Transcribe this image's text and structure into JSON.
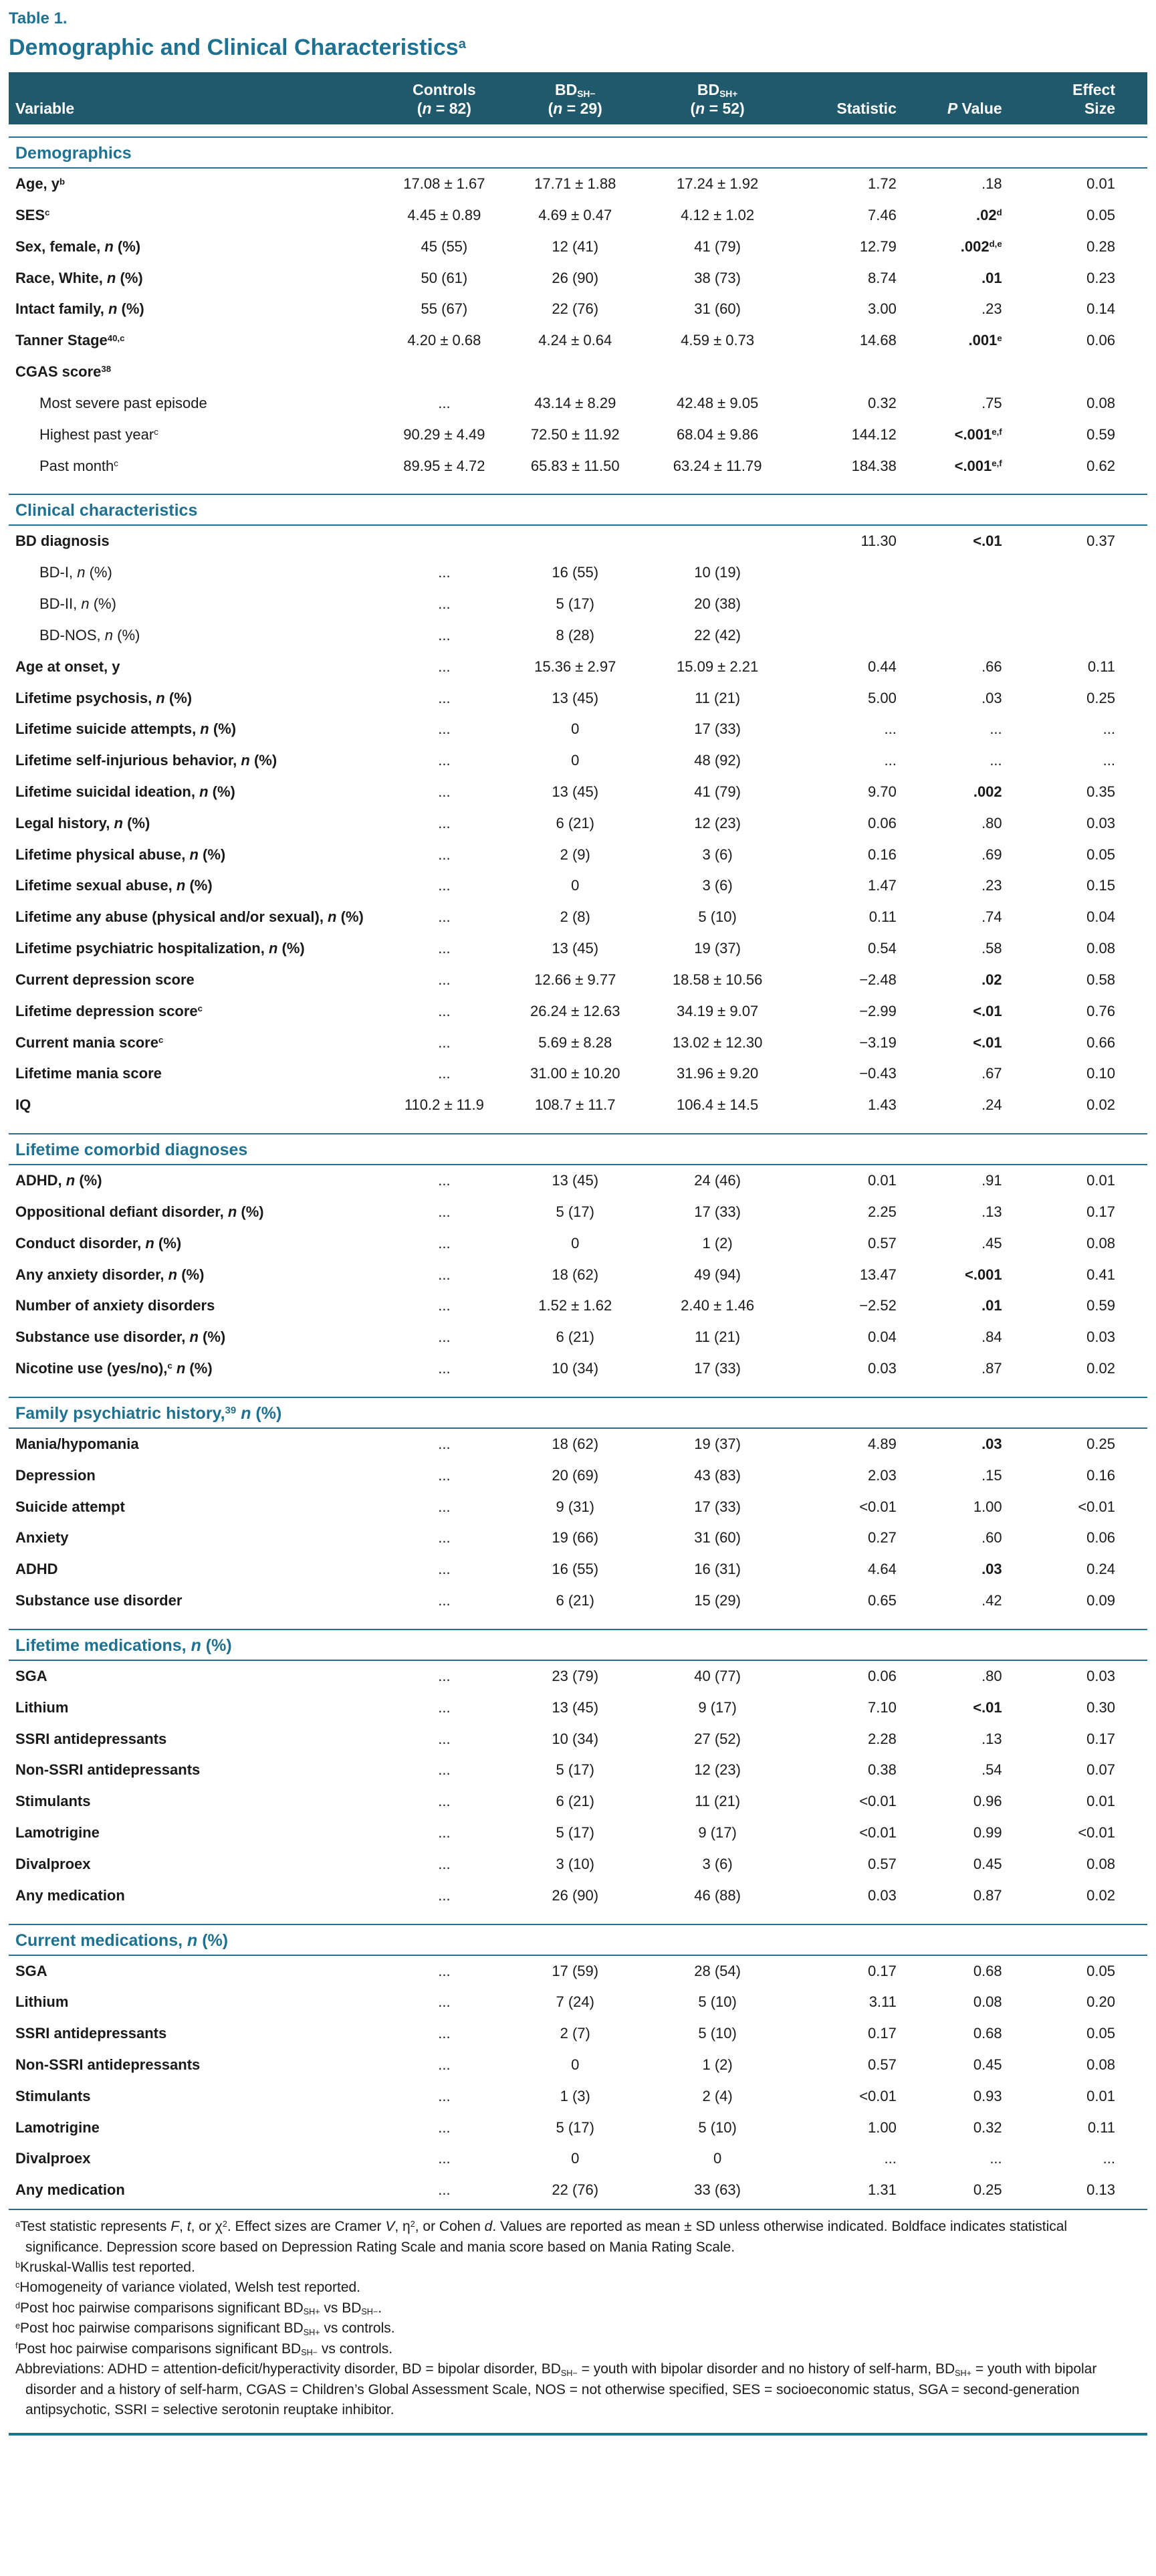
{
  "colors": {
    "accent": "#1f7191",
    "header_bg": "#20586c"
  },
  "caption": {
    "table_label": "Table 1.",
    "title": "Demographic and Clinical Characteristics^{a}"
  },
  "table": {
    "columns": [
      {
        "key": "variable",
        "label": "Variable"
      },
      {
        "key": "controls",
        "label": "Controls\n(*{n} = 82)"
      },
      {
        "key": "bd-sh-minus",
        "label": "BD_{SH−}\n(*{n} = 29)"
      },
      {
        "key": "bd-sh-plus",
        "label": "BD_{SH+}\n(*{n} = 52)"
      },
      {
        "key": "statistic",
        "label": "Statistic"
      },
      {
        "key": "p-value",
        "label": "*{P} Value"
      },
      {
        "key": "effect-size",
        "label": "Effect\nSize"
      }
    ],
    "sections": [
      {
        "key": "demographics",
        "title": "Demographics",
        "rows": [
          {
            "label": "Age, y^{b}",
            "values": [
              "17.08 ± 1.67",
              "17.71 ± 1.88",
              "17.24 ± 1.92",
              "1.72",
              ".18",
              "0.01"
            ]
          },
          {
            "label": "SES^{c}",
            "values": [
              "4.45 ± 0.89",
              "4.69 ± 0.47",
              "4.12 ± 1.02",
              "7.46",
              ".02^{d}",
              "0.05"
            ],
            "p_bold": true
          },
          {
            "label": "Sex, female, *{n} (%)",
            "values": [
              "45 (55)",
              "12 (41)",
              "41 (79)",
              "12.79",
              ".002^{d,e}",
              "0.28"
            ],
            "p_bold": true
          },
          {
            "label": "Race, White, *{n} (%)",
            "values": [
              "50 (61)",
              "26 (90)",
              "38 (73)",
              "8.74",
              ".01",
              "0.23"
            ],
            "p_bold": true
          },
          {
            "label": "Intact family, *{n} (%)",
            "values": [
              "55 (67)",
              "22 (76)",
              "31 (60)",
              "3.00",
              ".23",
              "0.14"
            ]
          },
          {
            "label": "Tanner Stage^{40,c}",
            "values": [
              "4.20 ± 0.68",
              "4.24 ± 0.64",
              "4.59 ± 0.73",
              "14.68",
              ".001^{e}",
              "0.06"
            ],
            "p_bold": true
          },
          {
            "label": "CGAS score^{38}",
            "values": [
              "",
              "",
              "",
              "",
              "",
              ""
            ]
          },
          {
            "label": "Most severe past episode",
            "indent": true,
            "values": [
              "...",
              "43.14 ± 8.29",
              "42.48 ± 9.05",
              "0.32",
              ".75",
              "0.08"
            ]
          },
          {
            "label": "Highest past year^{c}",
            "indent": true,
            "values": [
              "90.29 ± 4.49",
              "72.50 ± 11.92",
              "68.04 ± 9.86",
              "144.12",
              "<.001^{e,f}",
              "0.59"
            ],
            "p_bold": true
          },
          {
            "label": "Past month^{c}",
            "indent": true,
            "values": [
              "89.95 ± 4.72",
              "65.83 ± 11.50",
              "63.24 ± 11.79",
              "184.38",
              "<.001^{e,f}",
              "0.62"
            ],
            "p_bold": true
          }
        ]
      },
      {
        "key": "clinical-characteristics",
        "title": "Clinical characteristics",
        "rows": [
          {
            "label": "BD diagnosis",
            "values": [
              "",
              "",
              "",
              "11.30",
              "<.01",
              "0.37"
            ],
            "p_bold": true
          },
          {
            "label": "BD-I, *{n} (%)",
            "indent": true,
            "values": [
              "...",
              "16 (55)",
              "10 (19)",
              "",
              "",
              ""
            ]
          },
          {
            "label": "BD-II, *{n} (%)",
            "indent": true,
            "values": [
              "...",
              "5 (17)",
              "20 (38)",
              "",
              "",
              ""
            ]
          },
          {
            "label": "BD-NOS, *{n} (%)",
            "indent": true,
            "values": [
              "...",
              "8 (28)",
              "22 (42)",
              "",
              "",
              ""
            ]
          },
          {
            "label": "Age at onset, y",
            "values": [
              "...",
              "15.36 ± 2.97",
              "15.09 ± 2.21",
              "0.44",
              ".66",
              "0.11"
            ]
          },
          {
            "label": "Lifetime psychosis, *{n} (%)",
            "values": [
              "...",
              "13 (45)",
              "11 (21)",
              "5.00",
              ".03",
              "0.25"
            ]
          },
          {
            "label": "Lifetime suicide attempts, *{n} (%)",
            "values": [
              "...",
              "0",
              "17 (33)",
              "...",
              "...",
              "..."
            ]
          },
          {
            "label": "Lifetime self-injurious behavior, *{n} (%)",
            "values": [
              "...",
              "0",
              "48 (92)",
              "...",
              "...",
              "..."
            ]
          },
          {
            "label": "Lifetime suicidal ideation, *{n} (%)",
            "values": [
              "...",
              "13 (45)",
              "41 (79)",
              "9.70",
              ".002",
              "0.35"
            ],
            "p_bold": true
          },
          {
            "label": "Legal history, *{n} (%)",
            "values": [
              "...",
              "6 (21)",
              "12 (23)",
              "0.06",
              ".80",
              "0.03"
            ]
          },
          {
            "label": "Lifetime physical abuse, *{n} (%)",
            "values": [
              "...",
              "2 (9)",
              "3 (6)",
              "0.16",
              ".69",
              "0.05"
            ]
          },
          {
            "label": "Lifetime sexual abuse, *{n} (%)",
            "values": [
              "...",
              "0",
              "3 (6)",
              "1.47",
              ".23",
              "0.15"
            ]
          },
          {
            "label": "Lifetime any abuse (physical and/or sexual), *{n} (%)",
            "values": [
              "...",
              "2 (8)",
              "5 (10)",
              "0.11",
              ".74",
              "0.04"
            ]
          },
          {
            "label": "Lifetime psychiatric hospitalization, *{n} (%)",
            "values": [
              "...",
              "13 (45)",
              "19 (37)",
              "0.54",
              ".58",
              "0.08"
            ]
          },
          {
            "label": "Current depression score",
            "values": [
              "...",
              "12.66 ± 9.77",
              "18.58 ± 10.56",
              "−2.48",
              ".02",
              "0.58"
            ],
            "p_bold": true
          },
          {
            "label": "Lifetime depression score^{c}",
            "values": [
              "...",
              "26.24 ± 12.63",
              "34.19 ± 9.07",
              "−2.99",
              "<.01",
              "0.76"
            ],
            "p_bold": true
          },
          {
            "label": "Current mania score^{c}",
            "values": [
              "...",
              "5.69 ± 8.28",
              "13.02 ± 12.30",
              "−3.19",
              "<.01",
              "0.66"
            ],
            "p_bold": true
          },
          {
            "label": "Lifetime mania score",
            "values": [
              "...",
              "31.00 ± 10.20",
              "31.96 ± 9.20",
              "−0.43",
              ".67",
              "0.10"
            ]
          },
          {
            "label": "IQ",
            "values": [
              "110.2 ± 11.9",
              "108.7 ± 11.7",
              "106.4 ± 14.5",
              "1.43",
              ".24",
              "0.02"
            ]
          }
        ]
      },
      {
        "key": "lifetime-comorbid-diagnoses",
        "title": "Lifetime comorbid diagnoses",
        "rows": [
          {
            "label": "ADHD, *{n} (%)",
            "values": [
              "...",
              "13 (45)",
              "24 (46)",
              "0.01",
              ".91",
              "0.01"
            ]
          },
          {
            "label": "Oppositional defiant disorder, *{n} (%)",
            "values": [
              "...",
              "5 (17)",
              "17 (33)",
              "2.25",
              ".13",
              "0.17"
            ]
          },
          {
            "label": "Conduct disorder, *{n} (%)",
            "values": [
              "...",
              "0",
              "1 (2)",
              "0.57",
              ".45",
              "0.08"
            ]
          },
          {
            "label": "Any anxiety disorder, *{n} (%)",
            "values": [
              "...",
              "18 (62)",
              "49 (94)",
              "13.47",
              "<.001",
              "0.41"
            ],
            "p_bold": true
          },
          {
            "label": "Number of anxiety disorders",
            "values": [
              "...",
              "1.52 ± 1.62",
              "2.40 ± 1.46",
              "−2.52",
              ".01",
              "0.59"
            ],
            "p_bold": true
          },
          {
            "label": "Substance use disorder, *{n} (%)",
            "values": [
              "...",
              "6 (21)",
              "11 (21)",
              "0.04",
              ".84",
              "0.03"
            ]
          },
          {
            "label": "Nicotine use (yes/no),^{c} *{n} (%)",
            "values": [
              "...",
              "10 (34)",
              "17 (33)",
              "0.03",
              ".87",
              "0.02"
            ]
          }
        ]
      },
      {
        "key": "family-psychiatric-history",
        "title": "Family psychiatric history,^{39} *{n} (%)",
        "rows": [
          {
            "label": "Mania/hypomania",
            "values": [
              "...",
              "18 (62)",
              "19 (37)",
              "4.89",
              ".03",
              "0.25"
            ],
            "p_bold": true
          },
          {
            "label": "Depression",
            "values": [
              "...",
              "20 (69)",
              "43 (83)",
              "2.03",
              ".15",
              "0.16"
            ]
          },
          {
            "label": "Suicide attempt",
            "values": [
              "...",
              "9 (31)",
              "17 (33)",
              "<0.01",
              "1.00",
              "<0.01"
            ]
          },
          {
            "label": "Anxiety",
            "values": [
              "...",
              "19 (66)",
              "31 (60)",
              "0.27",
              ".60",
              "0.06"
            ]
          },
          {
            "label": "ADHD",
            "values": [
              "...",
              "16 (55)",
              "16 (31)",
              "4.64",
              ".03",
              "0.24"
            ],
            "p_bold": true
          },
          {
            "label": "Substance use disorder",
            "values": [
              "...",
              "6 (21)",
              "15 (29)",
              "0.65",
              ".42",
              "0.09"
            ]
          }
        ]
      },
      {
        "key": "lifetime-medications",
        "title": "Lifetime medications, *{n} (%)",
        "rows": [
          {
            "label": "SGA",
            "values": [
              "...",
              "23 (79)",
              "40 (77)",
              "0.06",
              ".80",
              "0.03"
            ]
          },
          {
            "label": "Lithium",
            "values": [
              "...",
              "13 (45)",
              "9 (17)",
              "7.10",
              "<.01",
              "0.30"
            ],
            "p_bold": true
          },
          {
            "label": "SSRI antidepressants",
            "values": [
              "...",
              "10 (34)",
              "27 (52)",
              "2.28",
              ".13",
              "0.17"
            ]
          },
          {
            "label": "Non-SSRI antidepressants",
            "values": [
              "...",
              "5 (17)",
              "12 (23)",
              "0.38",
              ".54",
              "0.07"
            ]
          },
          {
            "label": "Stimulants",
            "values": [
              "...",
              "6 (21)",
              "11 (21)",
              "<0.01",
              "0.96",
              "0.01"
            ]
          },
          {
            "label": "Lamotrigine",
            "values": [
              "...",
              "5 (17)",
              "9 (17)",
              "<0.01",
              "0.99",
              "<0.01"
            ]
          },
          {
            "label": "Divalproex",
            "values": [
              "...",
              "3 (10)",
              "3 (6)",
              "0.57",
              "0.45",
              "0.08"
            ]
          },
          {
            "label": "Any medication",
            "values": [
              "...",
              "26 (90)",
              "46 (88)",
              "0.03",
              "0.87",
              "0.02"
            ]
          }
        ]
      },
      {
        "key": "current-medications",
        "title": "Current medications, *{n} (%)",
        "rows": [
          {
            "label": "SGA",
            "values": [
              "...",
              "17 (59)",
              "28 (54)",
              "0.17",
              "0.68",
              "0.05"
            ]
          },
          {
            "label": "Lithium",
            "values": [
              "...",
              "7 (24)",
              "5 (10)",
              "3.11",
              "0.08",
              "0.20"
            ]
          },
          {
            "label": "SSRI antidepressants",
            "values": [
              "...",
              "2 (7)",
              "5 (10)",
              "0.17",
              "0.68",
              "0.05"
            ]
          },
          {
            "label": "Non-SSRI antidepressants",
            "values": [
              "...",
              "0",
              "1 (2)",
              "0.57",
              "0.45",
              "0.08"
            ]
          },
          {
            "label": "Stimulants",
            "values": [
              "...",
              "1 (3)",
              "2 (4)",
              "<0.01",
              "0.93",
              "0.01"
            ]
          },
          {
            "label": "Lamotrigine",
            "values": [
              "...",
              "5 (17)",
              "5 (10)",
              "1.00",
              "0.32",
              "0.11"
            ]
          },
          {
            "label": "Divalproex",
            "values": [
              "...",
              "0",
              "0",
              "...",
              "...",
              "..."
            ]
          },
          {
            "label": "Any medication",
            "values": [
              "...",
              "22 (76)",
              "33 (63)",
              "1.31",
              "0.25",
              "0.13"
            ]
          }
        ]
      }
    ]
  },
  "footnotes": [
    "^{a}Test statistic represents *{F}, *{t}, or χ^{2}. Effect sizes are Cramer *{V}, η^{2}, or Cohen *{d}. Values are reported as mean ± SD unless otherwise indicated. Boldface indicates statistical significance. Depression score based on Depression Rating Scale and mania score based on Mania Rating Scale.",
    "^{b}Kruskal-Wallis test reported.",
    "^{c}Homogeneity of variance violated, Welsh test reported.",
    "^{d}Post hoc pairwise comparisons significant BD_{SH+} vs BD_{SH−}.",
    "^{e}Post hoc pairwise comparisons significant BD_{SH+} vs controls.",
    "^{f}Post hoc pairwise comparisons significant BD_{SH−} vs controls.",
    "Abbreviations: ADHD = attention-deficit/hyperactivity disorder, BD = bipolar disorder, BD_{SH−} = youth with bipolar disorder and no history of self-harm, BD_{SH+} = youth with bipolar disorder and a history of self-harm, CGAS = Children’s Global Assessment Scale, NOS = not otherwise specified, SES = socioeconomic status, SGA = second-generation antipsychotic, SSRI = selective serotonin reuptake inhibitor."
  ]
}
